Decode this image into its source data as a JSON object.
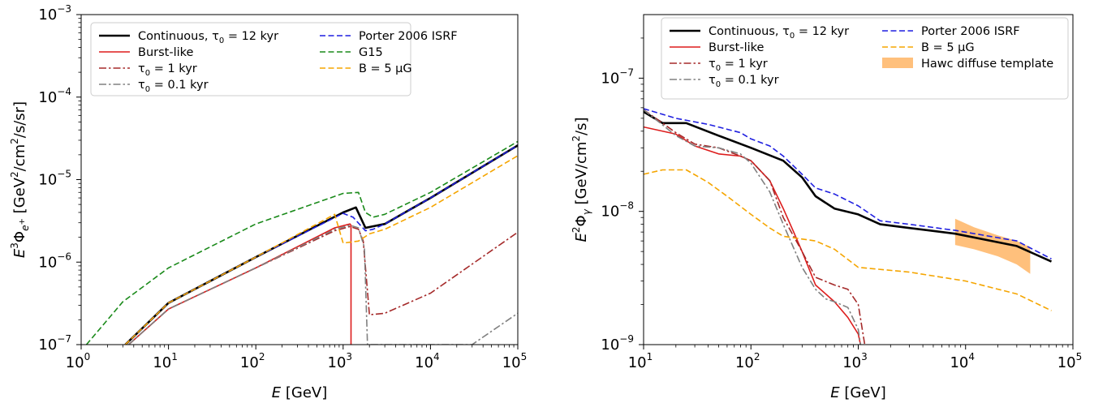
{
  "chart_data": [
    {
      "type": "line",
      "xscale": "log",
      "yscale": "log",
      "xlim": [
        1,
        100000
      ],
      "ylim": [
        1e-07,
        0.001
      ],
      "xlabel": "E [GeV]",
      "ylabel": "E^3 Φ_{e+} [GeV^2/cm^2/s/sr]",
      "x_tick_labels": [
        {
          "base": "10",
          "exp": "0"
        },
        {
          "base": "10",
          "exp": "1"
        },
        {
          "base": "10",
          "exp": "2"
        },
        {
          "base": "10",
          "exp": "3"
        },
        {
          "base": "10",
          "exp": "4"
        },
        {
          "base": "10",
          "exp": "5"
        }
      ],
      "y_tick_labels": [
        {
          "base": "10",
          "exp": "−7"
        },
        {
          "base": "10",
          "exp": "−6"
        },
        {
          "base": "10",
          "exp": "−5"
        },
        {
          "base": "10",
          "exp": "−4"
        },
        {
          "base": "10",
          "exp": "−3"
        }
      ],
      "legend_position": "top-left",
      "grid": false,
      "series": [
        {
          "name": "Continuous, τ0 = 12 kyr",
          "color": "#000000",
          "style": "solid",
          "x": [
            3.2,
            10,
            100,
            1000,
            1400,
            1800,
            3000,
            10000,
            100000
          ],
          "y": [
            1e-07,
            3.2e-07,
            1.15e-06,
            4e-06,
            4.6e-06,
            2.6e-06,
            2.9e-06,
            6e-06,
            2.6e-05
          ]
        },
        {
          "name": "Burst-like",
          "color": "#dd1c1c",
          "style": "solid",
          "x": [
            3.5,
            10,
            100,
            800,
            1200,
            1230,
            1230
          ],
          "y": [
            1e-07,
            2.7e-07,
            8.5e-07,
            2.6e-06,
            2.9e-06,
            2.8e-06,
            1e-07
          ]
        },
        {
          "name": "τ0 = 1 kyr",
          "color": "#a52a2a",
          "style": "dashdot",
          "x": [
            3.5,
            10,
            100,
            800,
            1200,
            1500,
            1700,
            2000,
            3000,
            10000,
            100000
          ],
          "y": [
            1e-07,
            2.7e-07,
            8.5e-07,
            2.4e-06,
            2.7e-06,
            2.5e-06,
            1.8e-06,
            2.3e-07,
            2.4e-07,
            4.2e-07,
            2.3e-06
          ]
        },
        {
          "name": "τ0 = 0.1 kyr",
          "color": "#808080",
          "style": "dashdot",
          "x": [
            3.5,
            10,
            100,
            800,
            1200,
            1500,
            1750,
            1900,
            30000,
            100000
          ],
          "y": [
            1e-07,
            2.7e-07,
            8.5e-07,
            2.5e-06,
            2.8e-06,
            2.6e-06,
            1.5e-06,
            1e-07,
            1e-07,
            2.4e-07
          ]
        },
        {
          "name": "Porter 2006 ISRF",
          "color": "#1f1fe0",
          "style": "dashed",
          "x": [
            3.2,
            10,
            100,
            1000,
            1300,
            1800,
            2200,
            3000,
            10000,
            100000
          ],
          "y": [
            1e-07,
            3.2e-07,
            1.15e-06,
            3.9e-06,
            3.5e-06,
            2.4e-06,
            2.5e-06,
            2.9e-06,
            6e-06,
            2.6e-05
          ]
        },
        {
          "name": "G15",
          "color": "#1a8a1a",
          "style": "dashed",
          "x": [
            1.15,
            3,
            10,
            100,
            1000,
            1500,
            1800,
            2200,
            3000,
            10000,
            100000
          ],
          "y": [
            1e-07,
            3.3e-07,
            8.5e-07,
            2.9e-06,
            6.8e-06,
            7e-06,
            4e-06,
            3.5e-06,
            3.8e-06,
            7e-06,
            2.9e-05
          ]
        },
        {
          "name": "B = 5 μG",
          "color": "#f5a500",
          "style": "dashed",
          "x": [
            3.2,
            10,
            100,
            800,
            1000,
            1500,
            2000,
            3000,
            10000,
            100000
          ],
          "y": [
            1e-07,
            3.2e-07,
            1.15e-06,
            3.8e-06,
            1.7e-06,
            1.8e-06,
            2.2e-06,
            2.5e-06,
            4.6e-06,
            1.95e-05
          ]
        }
      ]
    },
    {
      "type": "line",
      "xscale": "log",
      "yscale": "log",
      "xlim": [
        10,
        100000
      ],
      "ylim": [
        1e-09,
        3e-07
      ],
      "xlabel": "E [GeV]",
      "ylabel": "E^2 Φ_γ [GeV/cm^2/s]",
      "x_tick_labels": [
        {
          "base": "10",
          "exp": "1"
        },
        {
          "base": "10",
          "exp": "2"
        },
        {
          "base": "10",
          "exp": "3"
        },
        {
          "base": "10",
          "exp": "4"
        },
        {
          "base": "10",
          "exp": "5"
        }
      ],
      "y_tick_labels": [
        {
          "base": "10",
          "exp": "−9"
        },
        {
          "base": "10",
          "exp": "−8"
        },
        {
          "base": "10",
          "exp": "−7"
        }
      ],
      "legend_position": "top",
      "grid": false,
      "series": [
        {
          "name": "Continuous, τ0 = 12 kyr",
          "color": "#000000",
          "style": "solid",
          "x": [
            10,
            15,
            25,
            50,
            100,
            200,
            300,
            400,
            600,
            1000,
            1600,
            3000,
            8000,
            30000,
            63000
          ],
          "y": [
            5.6e-08,
            4.6e-08,
            4.6e-08,
            3.7e-08,
            3e-08,
            2.4e-08,
            1.8e-08,
            1.3e-08,
            1.05e-08,
            9.5e-09,
            8e-09,
            7.5e-09,
            6.8e-09,
            5.5e-09,
            4.2e-09
          ]
        },
        {
          "name": "Burst-like",
          "color": "#dd1c1c",
          "style": "solid",
          "x": [
            10,
            20,
            30,
            50,
            80,
            100,
            150,
            200,
            250,
            300,
            400,
            600,
            800,
            1000,
            1050
          ],
          "y": [
            4.3e-08,
            3.8e-08,
            3.1e-08,
            2.7e-08,
            2.6e-08,
            2.4e-08,
            1.7e-08,
            1.05e-08,
            7e-09,
            5e-09,
            2.8e-09,
            2.1e-09,
            1.6e-09,
            1.2e-09,
            1e-09
          ]
        },
        {
          "name": "τ0 = 1 kyr",
          "color": "#a52a2a",
          "style": "dashdot",
          "x": [
            10,
            20,
            30,
            50,
            80,
            100,
            150,
            200,
            300,
            400,
            600,
            800,
            1000,
            1150
          ],
          "y": [
            5.8e-08,
            3.9e-08,
            3.2e-08,
            3e-08,
            2.6e-08,
            2.4e-08,
            1.7e-08,
            9e-09,
            5e-09,
            3.2e-09,
            2.8e-09,
            2.6e-09,
            2e-09,
            1e-09
          ]
        },
        {
          "name": "τ0 = 0.1 kyr",
          "color": "#808080",
          "style": "dashdot",
          "x": [
            10,
            20,
            30,
            50,
            80,
            100,
            150,
            200,
            300,
            400,
            500,
            600,
            800,
            1000,
            1050
          ],
          "y": [
            5.8e-08,
            3.7e-08,
            3.1e-08,
            3e-08,
            2.7e-08,
            2.3e-08,
            1.4e-08,
            8e-09,
            3.8e-09,
            2.6e-09,
            2.2e-09,
            2.1e-09,
            1.9e-09,
            1.3e-09,
            1e-09
          ]
        },
        {
          "name": "Porter 2006 ISRF",
          "color": "#1f1fe0",
          "style": "dashed",
          "x": [
            10,
            20,
            40,
            80,
            100,
            150,
            200,
            300,
            400,
            600,
            1000,
            1600,
            3000,
            8000,
            30000,
            63000
          ],
          "y": [
            5.9e-08,
            5e-08,
            4.5e-08,
            3.9e-08,
            3.5e-08,
            3.1e-08,
            2.6e-08,
            1.9e-08,
            1.5e-08,
            1.35e-08,
            1.1e-08,
            8.5e-09,
            8e-09,
            7.2e-09,
            6e-09,
            4.4e-09
          ]
        },
        {
          "name": "B = 5 μG",
          "color": "#f5a500",
          "style": "dashed",
          "x": [
            10,
            15,
            25,
            40,
            60,
            100,
            150,
            200,
            300,
            400,
            600,
            1000,
            3000,
            10000,
            30000,
            63000
          ],
          "y": [
            1.9e-08,
            2.05e-08,
            2.05e-08,
            1.65e-08,
            1.3e-08,
            9.5e-09,
            7.5e-09,
            6.5e-09,
            6.2e-09,
            6e-09,
            5.2e-09,
            3.8e-09,
            3.5e-09,
            3e-09,
            2.4e-09,
            1.8e-09
          ]
        }
      ],
      "band": {
        "name": "Hawc diffuse template",
        "color": "#ffa544",
        "x": [
          8000,
          12000,
          20000,
          30000,
          40000
        ],
        "upper": [
          8.8e-09,
          7.6e-09,
          6.6e-09,
          6e-09,
          5.4e-09
        ],
        "lower": [
          5.6e-09,
          5.2e-09,
          4.6e-09,
          4e-09,
          3.4e-09
        ]
      }
    }
  ]
}
